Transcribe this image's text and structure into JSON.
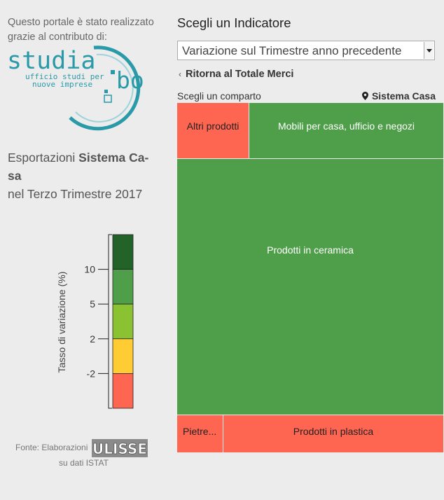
{
  "sidebar": {
    "intro_line1": "Questo portale è stato realizzato",
    "intro_line2": "grazie al contributo di:",
    "logo": {
      "word": "studia",
      "sub1": "ufficio studi per",
      "sub2": "nuove imprese",
      "suffix": "bo",
      "color": "#2a9aa8"
    },
    "heading_prefix": "Esportazioni ",
    "heading_bold_a": "Sistema Ca-",
    "heading_bold_b": "sa",
    "heading_line2": "nel Terzo Trimestre 2017",
    "legend": {
      "axis_label": "Tasso di variazione (%)",
      "ticks": [
        "10",
        "5",
        "2",
        "-2"
      ],
      "colors": [
        "#23632a",
        "#4f9f4a",
        "#8bc232",
        "#ffcc33",
        "#ff6652"
      ]
    },
    "fonte_text": "Fonte: Elaborazioni",
    "fonte_logo": "ULISSE",
    "fonte_source": "su dati ISTAT"
  },
  "main": {
    "title": "Scegli un Indicatore",
    "select_value": "Variazione sul Trimestre anno precedente",
    "back_link": "Ritorna al Totale Merci",
    "choose_label": "Scegli un comparto",
    "location": "Sistema Casa",
    "tiles": [
      {
        "label": "Altri prodotti",
        "color": "#ff6652"
      },
      {
        "label": "Mobili per casa, ufficio e negozi",
        "color": "#4f9f4a"
      },
      {
        "label": "Prodotti in ceramica",
        "color": "#4f9f4a"
      },
      {
        "label": "Pietre...",
        "color": "#ff6652"
      },
      {
        "label": "Prodotti in plastica",
        "color": "#ff6652"
      }
    ]
  }
}
